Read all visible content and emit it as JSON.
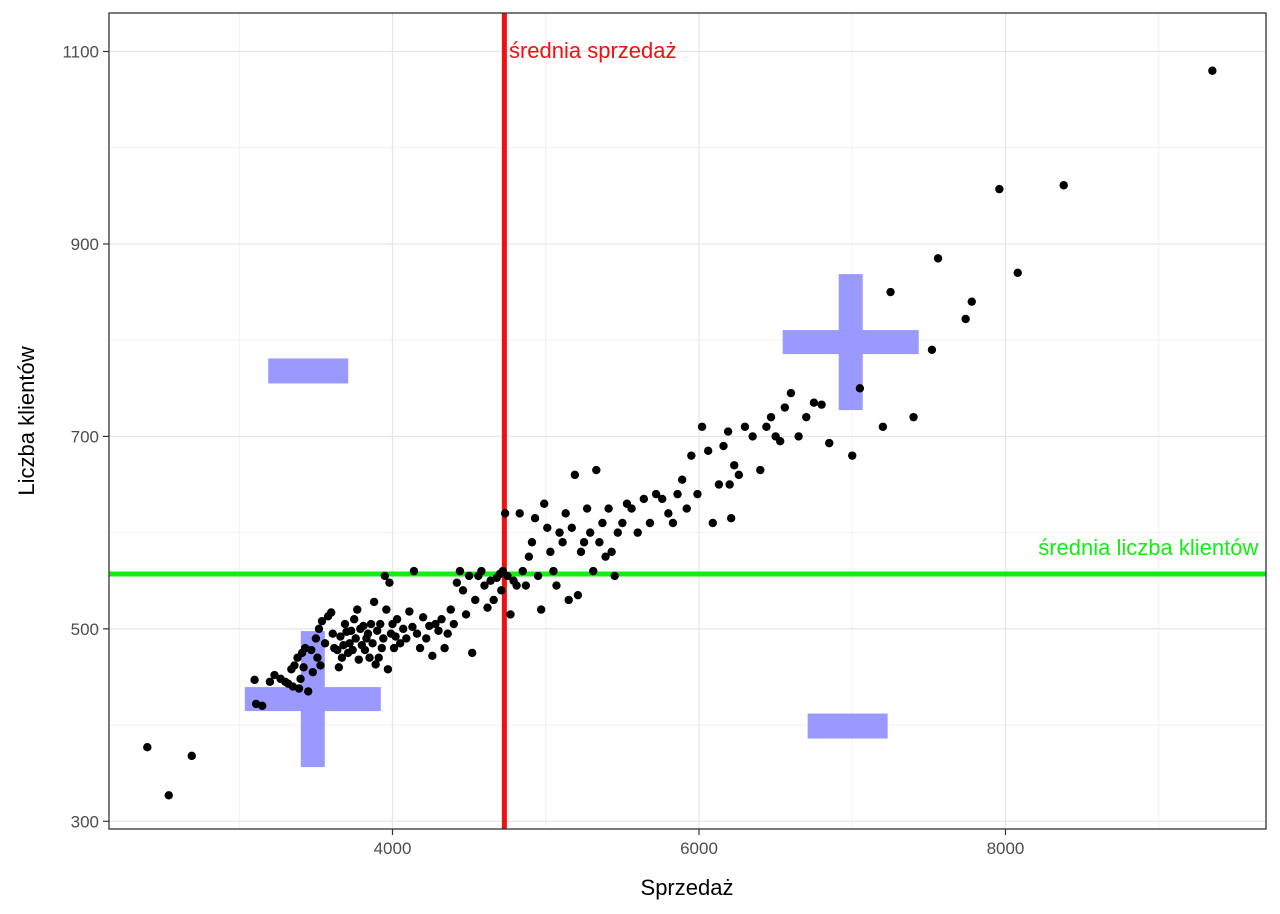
{
  "chart_data": {
    "type": "scatter",
    "xlabel": "Sprzedaż",
    "ylabel": "Liczba klientów",
    "xlim": [
      2150,
      9700
    ],
    "ylim": [
      292,
      1140
    ],
    "x_ticks": [
      4000,
      6000,
      8000
    ],
    "y_ticks": [
      300,
      500,
      700,
      900,
      1100
    ],
    "x_minor": [
      3000,
      5000,
      7000,
      9000
    ],
    "y_minor": [
      400,
      600,
      800,
      1000
    ],
    "grid": true,
    "point_color": "#000000",
    "mean_x": 4730,
    "mean_y": 557,
    "mean_x_color": "#ee1111",
    "mean_y_color": "#11ee11",
    "quadrant_color": "#9999ff",
    "annotations": [
      {
        "text": "średnia sprzedaż",
        "x": 4760,
        "y": 1093,
        "color": "#ee1111",
        "anchor": "start"
      },
      {
        "text": "średnia liczba klientów",
        "x": 9650,
        "y": 577,
        "color": "#11ee11",
        "anchor": "end"
      }
    ],
    "quadrant_signs": [
      {
        "sign": "plus",
        "x": 6990,
        "y": 798
      },
      {
        "sign": "minus",
        "x": 3450,
        "y": 768
      },
      {
        "sign": "plus",
        "x": 3480,
        "y": 427
      },
      {
        "sign": "minus",
        "x": 6970,
        "y": 399
      }
    ],
    "points": [
      [
        2400,
        377
      ],
      [
        2540,
        327
      ],
      [
        2690,
        368
      ],
      [
        3100,
        447
      ],
      [
        3110,
        422
      ],
      [
        3150,
        420
      ],
      [
        3200,
        445
      ],
      [
        3230,
        452
      ],
      [
        3270,
        448
      ],
      [
        3300,
        445
      ],
      [
        3320,
        443
      ],
      [
        3340,
        458
      ],
      [
        3350,
        440
      ],
      [
        3360,
        462
      ],
      [
        3380,
        470
      ],
      [
        3390,
        438
      ],
      [
        3400,
        448
      ],
      [
        3410,
        475
      ],
      [
        3420,
        460
      ],
      [
        3430,
        480
      ],
      [
        3450,
        435
      ],
      [
        3470,
        478
      ],
      [
        3480,
        455
      ],
      [
        3500,
        490
      ],
      [
        3510,
        470
      ],
      [
        3520,
        500
      ],
      [
        3530,
        462
      ],
      [
        3540,
        508
      ],
      [
        3560,
        485
      ],
      [
        3580,
        513
      ],
      [
        3600,
        517
      ],
      [
        3610,
        495
      ],
      [
        3620,
        480
      ],
      [
        3640,
        478
      ],
      [
        3650,
        460
      ],
      [
        3660,
        492
      ],
      [
        3670,
        470
      ],
      [
        3680,
        483
      ],
      [
        3690,
        505
      ],
      [
        3700,
        497
      ],
      [
        3710,
        475
      ],
      [
        3720,
        485
      ],
      [
        3730,
        498
      ],
      [
        3740,
        478
      ],
      [
        3750,
        510
      ],
      [
        3760,
        490
      ],
      [
        3770,
        520
      ],
      [
        3780,
        468
      ],
      [
        3790,
        500
      ],
      [
        3800,
        483
      ],
      [
        3810,
        503
      ],
      [
        3820,
        478
      ],
      [
        3830,
        490
      ],
      [
        3840,
        495
      ],
      [
        3850,
        470
      ],
      [
        3860,
        505
      ],
      [
        3870,
        485
      ],
      [
        3880,
        528
      ],
      [
        3890,
        463
      ],
      [
        3900,
        498
      ],
      [
        3910,
        470
      ],
      [
        3920,
        505
      ],
      [
        3930,
        480
      ],
      [
        3940,
        490
      ],
      [
        3950,
        555
      ],
      [
        3960,
        520
      ],
      [
        3970,
        458
      ],
      [
        3980,
        548
      ],
      [
        3990,
        495
      ],
      [
        4000,
        505
      ],
      [
        4010,
        480
      ],
      [
        4020,
        492
      ],
      [
        4030,
        510
      ],
      [
        4050,
        485
      ],
      [
        4070,
        500
      ],
      [
        4090,
        490
      ],
      [
        4110,
        518
      ],
      [
        4130,
        502
      ],
      [
        4140,
        560
      ],
      [
        4160,
        495
      ],
      [
        4180,
        480
      ],
      [
        4200,
        512
      ],
      [
        4220,
        490
      ],
      [
        4240,
        503
      ],
      [
        4260,
        472
      ],
      [
        4280,
        505
      ],
      [
        4300,
        498
      ],
      [
        4320,
        510
      ],
      [
        4340,
        480
      ],
      [
        4360,
        495
      ],
      [
        4380,
        520
      ],
      [
        4400,
        505
      ],
      [
        4420,
        548
      ],
      [
        4440,
        560
      ],
      [
        4460,
        540
      ],
      [
        4480,
        515
      ],
      [
        4500,
        555
      ],
      [
        4520,
        475
      ],
      [
        4540,
        530
      ],
      [
        4560,
        555
      ],
      [
        4580,
        560
      ],
      [
        4600,
        545
      ],
      [
        4620,
        522
      ],
      [
        4640,
        550
      ],
      [
        4660,
        530
      ],
      [
        4680,
        553
      ],
      [
        4700,
        557
      ],
      [
        4710,
        540
      ],
      [
        4720,
        560
      ],
      [
        4735,
        620
      ],
      [
        4750,
        555
      ],
      [
        4770,
        515
      ],
      [
        4790,
        550
      ],
      [
        4810,
        545
      ],
      [
        4830,
        620
      ],
      [
        4850,
        560
      ],
      [
        4870,
        545
      ],
      [
        4890,
        575
      ],
      [
        4910,
        590
      ],
      [
        4930,
        615
      ],
      [
        4950,
        555
      ],
      [
        4970,
        520
      ],
      [
        4990,
        630
      ],
      [
        5010,
        605
      ],
      [
        5030,
        580
      ],
      [
        5050,
        560
      ],
      [
        5070,
        545
      ],
      [
        5090,
        600
      ],
      [
        5110,
        590
      ],
      [
        5130,
        620
      ],
      [
        5150,
        530
      ],
      [
        5170,
        605
      ],
      [
        5190,
        660
      ],
      [
        5210,
        535
      ],
      [
        5230,
        580
      ],
      [
        5250,
        590
      ],
      [
        5270,
        625
      ],
      [
        5290,
        600
      ],
      [
        5310,
        560
      ],
      [
        5330,
        665
      ],
      [
        5350,
        590
      ],
      [
        5370,
        610
      ],
      [
        5390,
        575
      ],
      [
        5410,
        625
      ],
      [
        5430,
        580
      ],
      [
        5450,
        555
      ],
      [
        5470,
        600
      ],
      [
        5500,
        610
      ],
      [
        5530,
        630
      ],
      [
        5560,
        625
      ],
      [
        5600,
        600
      ],
      [
        5640,
        635
      ],
      [
        5680,
        610
      ],
      [
        5720,
        640
      ],
      [
        5760,
        635
      ],
      [
        5800,
        620
      ],
      [
        5830,
        610
      ],
      [
        5860,
        640
      ],
      [
        5890,
        655
      ],
      [
        5920,
        625
      ],
      [
        5950,
        680
      ],
      [
        5990,
        640
      ],
      [
        6020,
        710
      ],
      [
        6060,
        685
      ],
      [
        6090,
        610
      ],
      [
        6130,
        650
      ],
      [
        6160,
        690
      ],
      [
        6190,
        705
      ],
      [
        6200,
        650
      ],
      [
        6210,
        615
      ],
      [
        6230,
        670
      ],
      [
        6260,
        660
      ],
      [
        6300,
        710
      ],
      [
        6350,
        700
      ],
      [
        6400,
        665
      ],
      [
        6440,
        710
      ],
      [
        6470,
        720
      ],
      [
        6500,
        700
      ],
      [
        6530,
        695
      ],
      [
        6560,
        730
      ],
      [
        6600,
        745
      ],
      [
        6650,
        700
      ],
      [
        6700,
        720
      ],
      [
        6750,
        735
      ],
      [
        6800,
        733
      ],
      [
        6850,
        693
      ],
      [
        7000,
        680
      ],
      [
        7050,
        750
      ],
      [
        7200,
        710
      ],
      [
        7250,
        850
      ],
      [
        7400,
        720
      ],
      [
        7520,
        790
      ],
      [
        7560,
        885
      ],
      [
        7740,
        822
      ],
      [
        7780,
        840
      ],
      [
        7960,
        957
      ],
      [
        8080,
        870
      ],
      [
        8380,
        961
      ],
      [
        9350,
        1080
      ]
    ]
  }
}
